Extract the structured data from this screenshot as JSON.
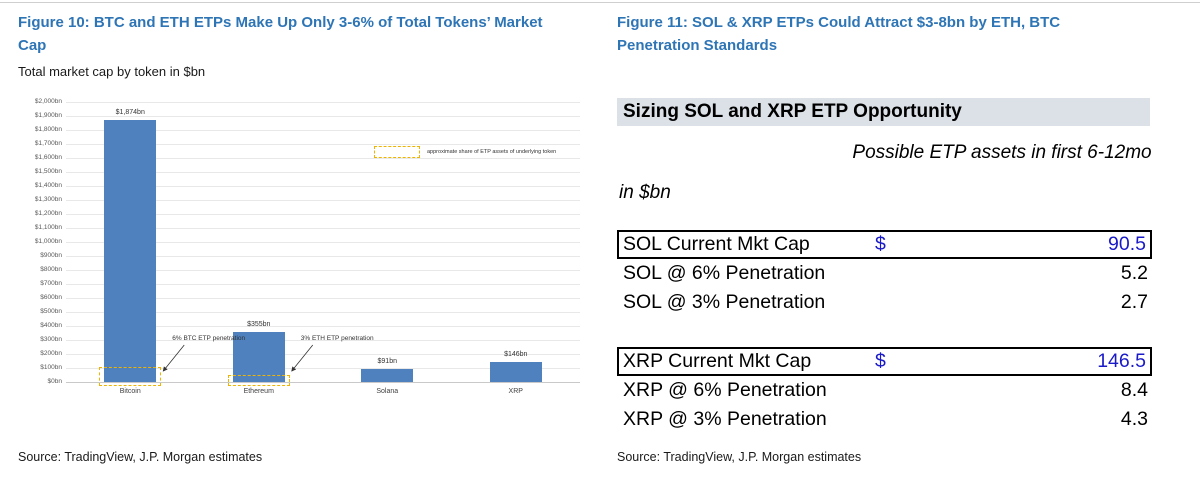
{
  "left_panel": {
    "figure_title": "Figure 10: BTC and ETH ETPs Make Up Only 3-6% of Total Tokens’ Market Cap",
    "subtitle": "Total market cap by token in $bn",
    "source": "Source: TradingView, J.P. Morgan estimates"
  },
  "right_panel": {
    "figure_title": "Figure 11: SOL & XRP ETPs Could Attract $3-8bn by ETH, BTC Penetration Standards",
    "table_title": "Sizing SOL and XRP ETP Opportunity",
    "unit_label": "in $bn",
    "value_header": "Possible ETP assets in first 6-12mo",
    "groups": [
      {
        "rows": [
          {
            "label": "SOL Current Mkt Cap",
            "currency": "$",
            "value": "90.5",
            "highlight": true
          },
          {
            "label": "SOL @ 6% Penetration",
            "currency": "",
            "value": "5.2",
            "highlight": false
          },
          {
            "label": "SOL @ 3% Penetration",
            "currency": "",
            "value": "2.7",
            "highlight": false
          }
        ]
      },
      {
        "rows": [
          {
            "label": "XRP Current Mkt Cap",
            "currency": "$",
            "value": "146.5",
            "highlight": true
          },
          {
            "label": "XRP @ 6% Penetration",
            "currency": "",
            "value": "8.4",
            "highlight": false
          },
          {
            "label": "XRP @ 3% Penetration",
            "currency": "",
            "value": "4.3",
            "highlight": false
          }
        ]
      }
    ],
    "source": "Source: TradingView, J.P. Morgan estimates"
  },
  "chart_data": {
    "type": "bar",
    "title": "Total market cap by token in $bn",
    "categories": [
      "Bitcoin",
      "Ethereum",
      "Solana",
      "XRP"
    ],
    "values": [
      1874,
      355,
      91,
      146
    ],
    "bar_labels": [
      "$1,874bn",
      "$355bn",
      "$91bn",
      "$146bn"
    ],
    "ylim": [
      0,
      2000
    ],
    "ytick_step": 100,
    "ytick_prefix": "$",
    "ytick_suffix": "bn",
    "grid": true,
    "legend": "approximate share of ETP assets of underlying token",
    "legend_position": "inside-top-right",
    "annotations": [
      {
        "target": "Bitcoin",
        "text": "6% BTC ETP penetration",
        "overlay_height_bn": 105
      },
      {
        "target": "Ethereum",
        "text": "3% ETH ETP penetration",
        "overlay_height_bn": 50
      }
    ]
  },
  "colors": {
    "figure_title_blue": "#2e75b6",
    "bar_blue": "#4e81bd",
    "etp_highlight_yellow": "#f0b400",
    "table_value_blue": "#1a1ac8",
    "table_header_bg": "#dce1e8",
    "grid_line": "#e8e8e8",
    "axis_text": "#595959"
  }
}
